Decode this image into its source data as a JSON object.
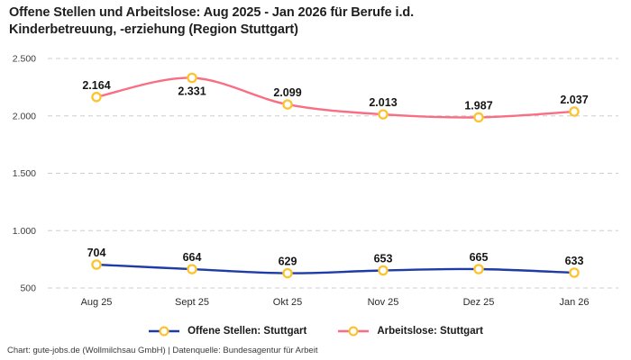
{
  "title": {
    "line1": "Offene Stellen und Arbeitslose: Aug 2025 - Jan 2026 für Berufe i.d.",
    "line2": "Kinderbetreuung, -erziehung (Region Stuttgart)"
  },
  "footer": {
    "text": "Chart: gute-jobs.de (Wollmilchsau GmbH) | Datenquelle: Bundesagentur für Arbeit"
  },
  "colors": {
    "open_positions_line": "#1e3ba8",
    "unemployed_line": "#f96e82",
    "marker_ring": "#fdc32f",
    "marker_fill": "#ffffff",
    "gridline": "#cdcdcd",
    "label_text": "#151515"
  },
  "chart_data": {
    "type": "line",
    "title": "Offene Stellen und Arbeitslose: Aug 2025 - Jan 2026 für Berufe i.d. Kinderbetreuung, -erziehung (Region Stuttgart)",
    "categories": [
      "Aug 25",
      "Sept 25",
      "Okt 25",
      "Nov 25",
      "Dez 25",
      "Jan 26"
    ],
    "series": [
      {
        "name": "Offene Stellen: Stuttgart",
        "color": "#1e3ba8",
        "values": [
          704,
          664,
          629,
          653,
          665,
          633
        ],
        "value_labels": [
          "704",
          "664",
          "629",
          "653",
          "665",
          "633"
        ],
        "label_positions": [
          "above",
          "above",
          "above",
          "above",
          "above",
          "above"
        ]
      },
      {
        "name": "Arbeitslose: Stuttgart",
        "color": "#f96e82",
        "values": [
          2164,
          2331,
          2099,
          2013,
          1987,
          2037
        ],
        "value_labels": [
          "2.164",
          "2.331",
          "2.099",
          "2.013",
          "1.987",
          "2.037"
        ],
        "label_positions": [
          "above",
          "below",
          "above",
          "above",
          "above",
          "above"
        ]
      }
    ],
    "marker": {
      "ring_color": "#fdc32f",
      "fill_color": "#ffffff"
    },
    "y_axis": {
      "min": 500,
      "max": 2500,
      "ticks": [
        500,
        1000,
        1500,
        2000,
        2500
      ],
      "tick_labels": [
        "500",
        "1.000",
        "1.500",
        "2.000",
        "2.500"
      ]
    },
    "grid": {
      "style": "dashed",
      "direction": "horizontal",
      "color": "#cdcdcd"
    },
    "legend_position": "bottom"
  }
}
